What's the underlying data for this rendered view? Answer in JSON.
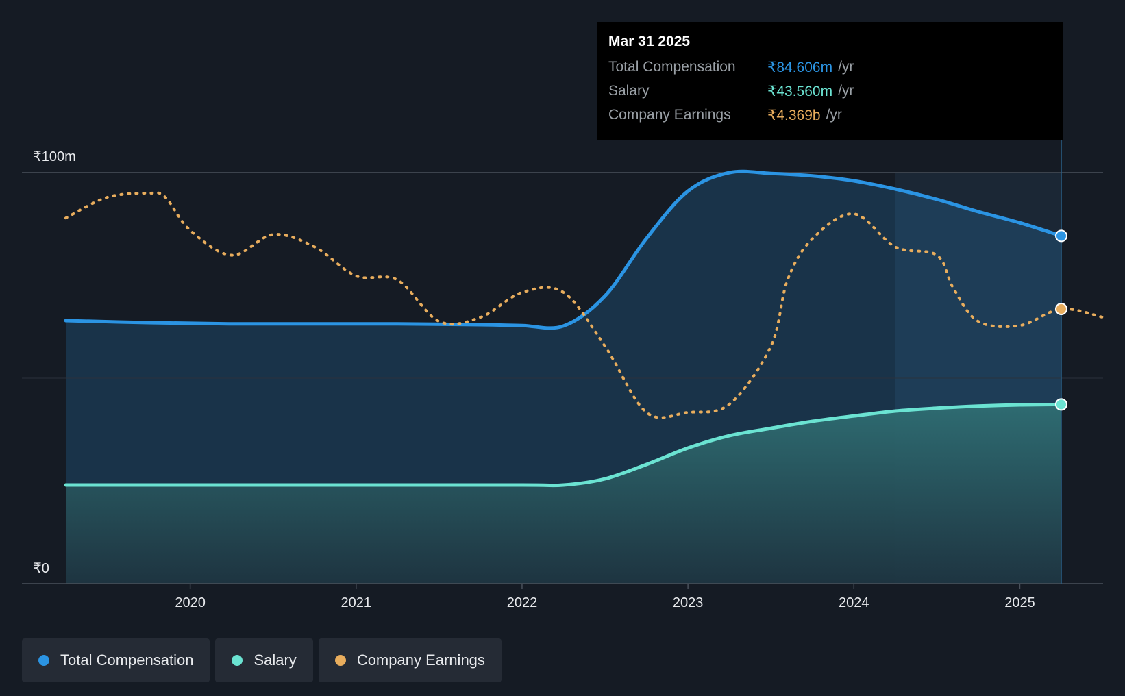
{
  "tooltip": {
    "date": "Mar 31 2025",
    "rows": [
      {
        "label": "Total Compensation",
        "value": "₹84.606m",
        "unit": "/yr"
      },
      {
        "label": "Salary",
        "value": "₹43.560m",
        "unit": "/yr"
      },
      {
        "label": "Company Earnings",
        "value": "₹4.369b",
        "unit": "/yr"
      }
    ]
  },
  "legend": {
    "total": "Total Compensation",
    "salary": "Salary",
    "earnings": "Company Earnings"
  },
  "colors": {
    "total": "#2b94e3",
    "salary": "#6be3d2",
    "earnings": "#e8ad5d",
    "background": "#151b24"
  },
  "chart_data": {
    "type": "area",
    "title": "",
    "xlabel": "",
    "ylabel": "",
    "ylim": [
      0,
      100
    ],
    "xlim": [
      2019.25,
      2025.5
    ],
    "y_tick_labels": [
      {
        "value": 100,
        "label": "₹100m"
      },
      {
        "value": 0,
        "label": "₹0"
      }
    ],
    "x_ticks": [
      2020,
      2021,
      2022,
      2023,
      2024,
      2025
    ],
    "x_tick_labels": [
      "2020",
      "2021",
      "2022",
      "2023",
      "2024",
      "2025"
    ],
    "highlight_from": 2024.25,
    "series": [
      {
        "name": "Total Compensation",
        "unit": "₹m",
        "x": [
          2019.25,
          2019.75,
          2020.25,
          2020.75,
          2021.25,
          2021.75,
          2022.0,
          2022.25,
          2022.5,
          2022.75,
          2023.0,
          2023.25,
          2023.5,
          2023.75,
          2024.0,
          2024.25,
          2024.5,
          2024.75,
          2025.0,
          2025.25
        ],
        "values": [
          64.0,
          63.5,
          63.2,
          63.2,
          63.2,
          63.0,
          62.8,
          62.7,
          70.0,
          84.0,
          95.5,
          100.0,
          99.8,
          99.2,
          98.0,
          96.0,
          93.5,
          90.5,
          87.8,
          84.6
        ]
      },
      {
        "name": "Salary",
        "unit": "₹m",
        "x": [
          2019.25,
          2020.0,
          2021.0,
          2022.0,
          2022.25,
          2022.5,
          2022.75,
          2023.0,
          2023.25,
          2023.5,
          2023.75,
          2024.0,
          2024.25,
          2024.5,
          2024.75,
          2025.0,
          2025.25
        ],
        "values": [
          24.0,
          24.0,
          24.0,
          24.0,
          24.0,
          25.5,
          29.0,
          33.0,
          36.0,
          37.8,
          39.5,
          40.8,
          42.0,
          42.7,
          43.2,
          43.5,
          43.6
        ]
      },
      {
        "name": "Company Earnings",
        "axis": "secondary (unlabeled)",
        "x": [
          2019.25,
          2019.5,
          2019.75,
          2019.85,
          2020.0,
          2020.25,
          2020.5,
          2020.75,
          2021.0,
          2021.25,
          2021.5,
          2021.75,
          2022.0,
          2022.25,
          2022.5,
          2022.75,
          2023.0,
          2023.25,
          2023.5,
          2023.6,
          2023.75,
          2024.0,
          2024.25,
          2024.5,
          2024.6,
          2024.75,
          2025.0,
          2025.25,
          2025.5
        ],
        "values": [
          89,
          94,
          95,
          94,
          86,
          80,
          85,
          82,
          75,
          74,
          64,
          65,
          71,
          71,
          58,
          42,
          42,
          44,
          58,
          74,
          84,
          90,
          82,
          80,
          72,
          64,
          63,
          67,
          65
        ]
      }
    ]
  }
}
